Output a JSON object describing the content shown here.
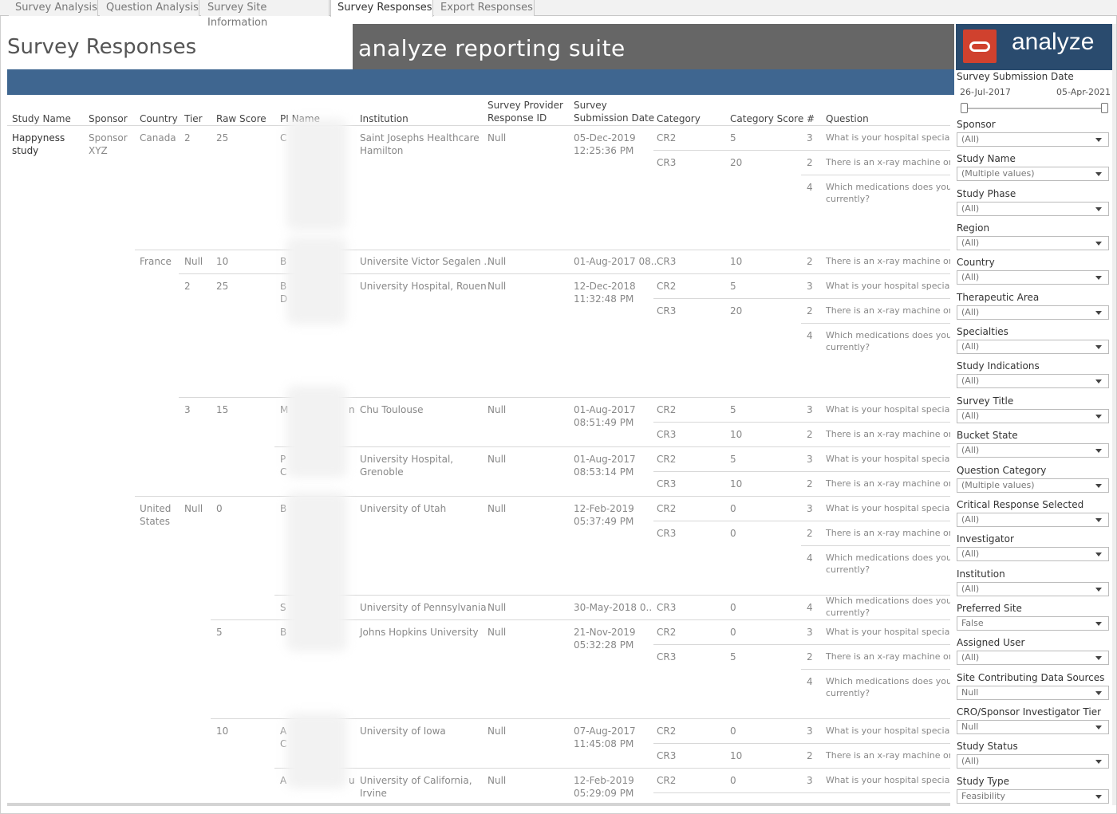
{
  "tabs": [
    "Survey Analysis",
    "Question Analysis",
    "Survey Site Information",
    "Survey Responses",
    "Export Responses"
  ],
  "page_title": "Survey Responses",
  "banner": "analyze reporting suite",
  "logo_text": "analyze",
  "headers": {
    "study_name": "Study Name",
    "sponsor": "Sponsor",
    "country": "Country",
    "tier": "Tier",
    "raw_score": "Raw Score",
    "pi_name": "PI Name",
    "institution": "Institution",
    "spr_id_1": "Survey Provider",
    "spr_id_2": "Response ID",
    "ssd_1": "Survey",
    "ssd_2": "Submission Date",
    "category": "Category",
    "category_score": "Category Score",
    "num": "#",
    "question": "Question"
  },
  "cells": {
    "study_1": "Happyness",
    "study_2": "study",
    "sponsor_1": "Sponsor",
    "sponsor_2": "XYZ",
    "c_canada": "Canada",
    "c_france": "France",
    "c_us_1": "United",
    "c_us_2": "States",
    "tier_2": "2",
    "tier_null": "Null",
    "tier_2b": "2",
    "tier_3": "3",
    "tier_null_us": "Null",
    "rs_25": "25",
    "rs_10": "10",
    "rs_25b": "25",
    "rs_15": "15",
    "rs_0": "0",
    "rs_5": "5",
    "rs_10b": "10",
    "pi_1": "C",
    "pi_2": "B",
    "pi_3a": "B",
    "pi_3b": "D",
    "pi_4": "M",
    "pi_4b": "n",
    "pi_5a": "P",
    "pi_5b": "C",
    "pi_6": "B",
    "pi_7": "S",
    "pi_8": "B",
    "pi_9a": "A",
    "pi_9b": "C",
    "pi_10": "A",
    "pi_10b": "u",
    "inst_1a": "Saint Josephs Healthcare",
    "inst_1b": "Hamilton",
    "inst_2": "Universite Victor Segalen ..",
    "inst_3": "University Hospital, Rouen",
    "inst_4": "Chu Toulouse",
    "inst_5a": "University Hospital,",
    "inst_5b": "Grenoble",
    "inst_6": "University of Utah",
    "inst_7": "University of Pennsylvania",
    "inst_8": "Johns Hopkins University",
    "inst_9": "University of Iowa",
    "inst_10a": "University of California,",
    "inst_10b": "Irvine",
    "null": "Null",
    "d_1a": "05-Dec-2019",
    "d_1b": "12:25:36 PM",
    "d_2": "01-Aug-2017 08..",
    "d_3a": "12-Dec-2018",
    "d_3b": "11:32:48 PM",
    "d_4a": "01-Aug-2017",
    "d_4b": "08:51:49 PM",
    "d_5a": "01-Aug-2017",
    "d_5b": "08:53:14 PM",
    "d_6a": "12-Feb-2019",
    "d_6b": "05:37:49 PM",
    "d_7": "30-May-2018 0..",
    "d_8a": "21-Nov-2019",
    "d_8b": "05:32:28 PM",
    "d_9a": "07-Aug-2017",
    "d_9b": "11:45:08 PM",
    "d_10a": "12-Feb-2019",
    "d_10b": "05:29:09 PM",
    "cr2": "CR2",
    "cr3": "CR3",
    "s5": "5",
    "s20": "20",
    "s10": "10",
    "s0": "0",
    "n3": "3",
    "n2": "2",
    "n4": "4",
    "q_specialty": "What is your hospital specialty",
    "q_xray": "There is an x-ray machine on sit",
    "q_meds_1": "Which medications does your h",
    "q_meds_2": "currently?"
  },
  "filters": {
    "date_label": "Survey Submission Date",
    "date_start": "26-Jul-2017",
    "date_end": "05-Apr-2021",
    "items": [
      {
        "label": "Sponsor",
        "value": "(All)"
      },
      {
        "label": "Study Name",
        "value": "(Multiple values)"
      },
      {
        "label": "Study Phase",
        "value": "(All)"
      },
      {
        "label": "Region",
        "value": "(All)"
      },
      {
        "label": "Country",
        "value": "(All)"
      },
      {
        "label": "Therapeutic Area",
        "value": "(All)"
      },
      {
        "label": "Specialties",
        "value": "(All)"
      },
      {
        "label": "Study Indications",
        "value": "(All)"
      },
      {
        "label": "Survey Title",
        "value": "(All)"
      },
      {
        "label": "Bucket State",
        "value": "(All)"
      },
      {
        "label": "Question Category",
        "value": "(Multiple values)"
      },
      {
        "label": "Critical Response Selected",
        "value": "(All)"
      },
      {
        "label": "Investigator",
        "value": "(All)"
      },
      {
        "label": "Institution",
        "value": "(All)"
      },
      {
        "label": "Preferred Site",
        "value": "False"
      },
      {
        "label": "Assigned User",
        "value": "(All)"
      },
      {
        "label": "Site Contributing Data Sources",
        "value": "Null"
      },
      {
        "label": "CRO/Sponsor Investigator Tier",
        "value": "Null"
      },
      {
        "label": "Study Status",
        "value": "(All)"
      },
      {
        "label": "Study Type",
        "value": "Feasibility"
      }
    ]
  }
}
